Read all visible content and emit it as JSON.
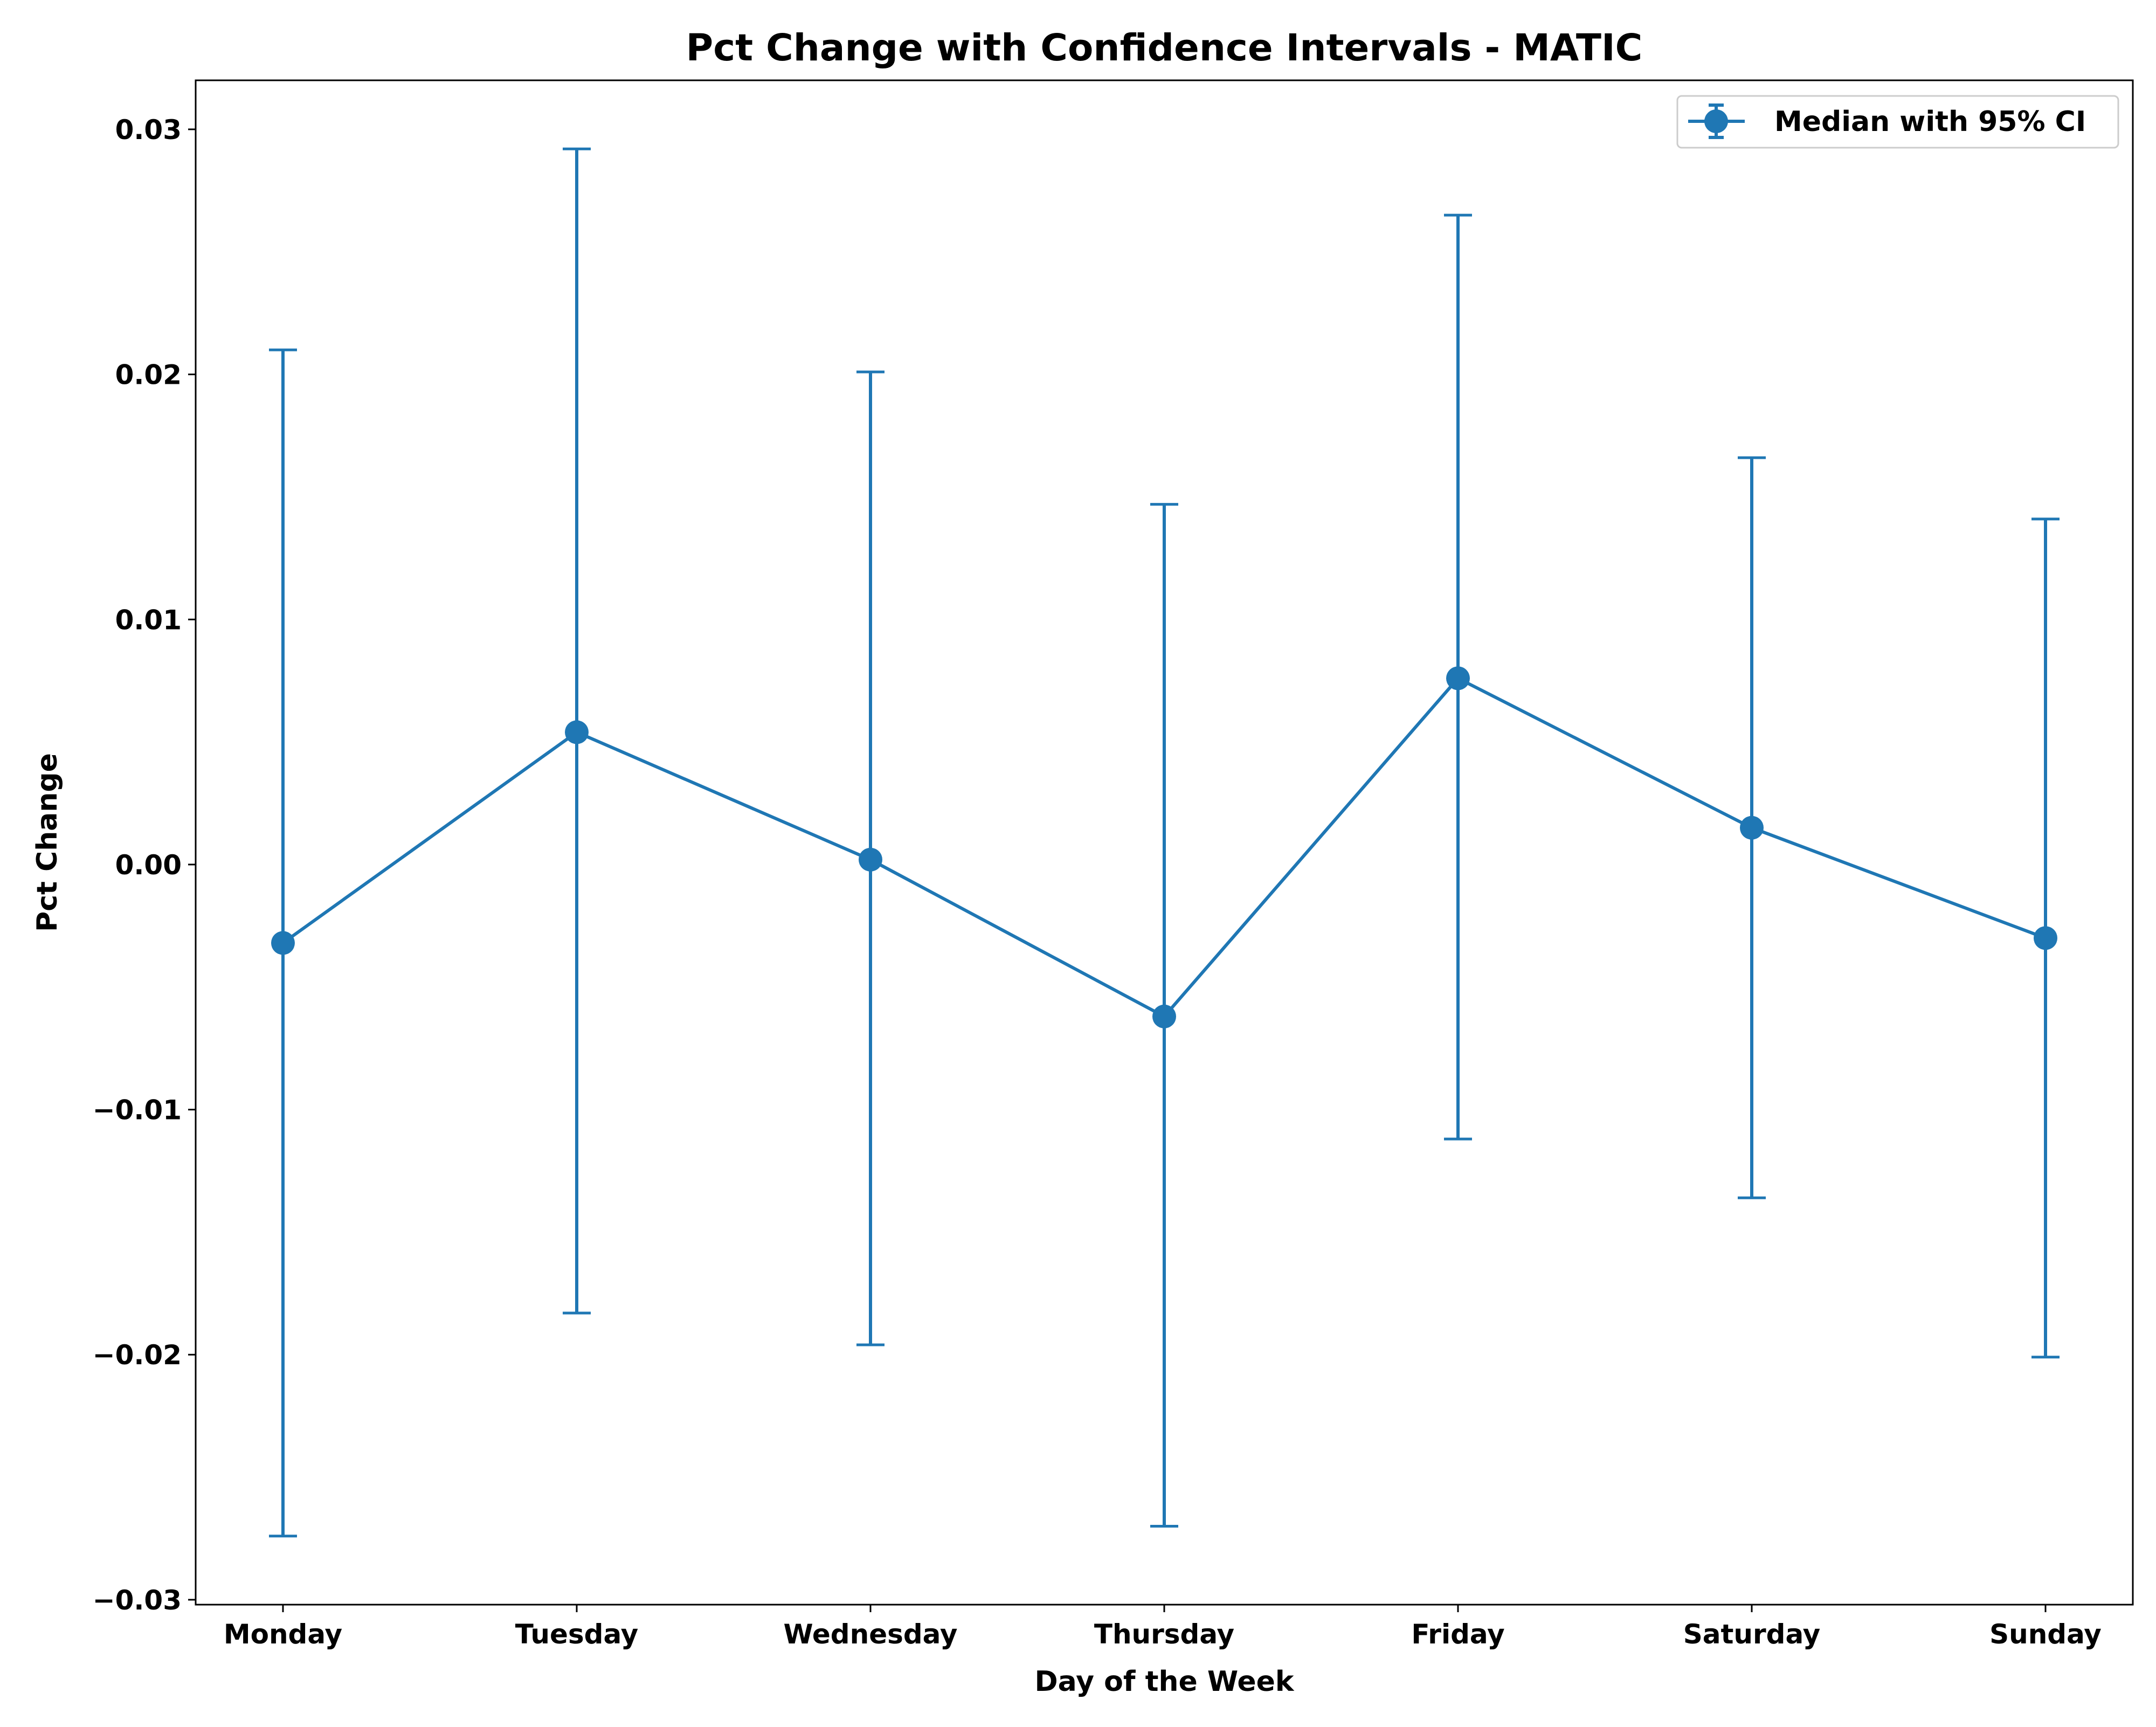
{
  "chart_data": {
    "type": "line",
    "title": "Pct Change with Confidence Intervals - MATIC",
    "xlabel": "Day of the Week",
    "ylabel": "Pct Change",
    "categories": [
      "Monday",
      "Tuesday",
      "Wednesday",
      "Thursday",
      "Friday",
      "Saturday",
      "Sunday"
    ],
    "series": [
      {
        "name": "Median with 95% CI",
        "values": [
          -0.0032,
          0.0054,
          0.0002,
          -0.0062,
          0.0076,
          0.0015,
          -0.003
        ],
        "ci_lower": [
          -0.0274,
          -0.0183,
          -0.0196,
          -0.027,
          -0.0112,
          -0.0136,
          -0.0201
        ],
        "ci_upper": [
          0.021,
          0.0292,
          0.0201,
          0.0147,
          0.0265,
          0.0166,
          0.0141
        ],
        "color": "#1f77b4"
      }
    ],
    "ylim": [
      -0.0302,
      0.032
    ],
    "yticks": [
      0.03,
      0.02,
      0.01,
      0.0,
      -0.01,
      -0.02,
      -0.03
    ],
    "ytick_labels": [
      "0.03",
      "0.02",
      "0.01",
      "0.00",
      "−0.01",
      "−0.02",
      "−0.03"
    ],
    "grid": false,
    "legend_position": "top-right"
  }
}
